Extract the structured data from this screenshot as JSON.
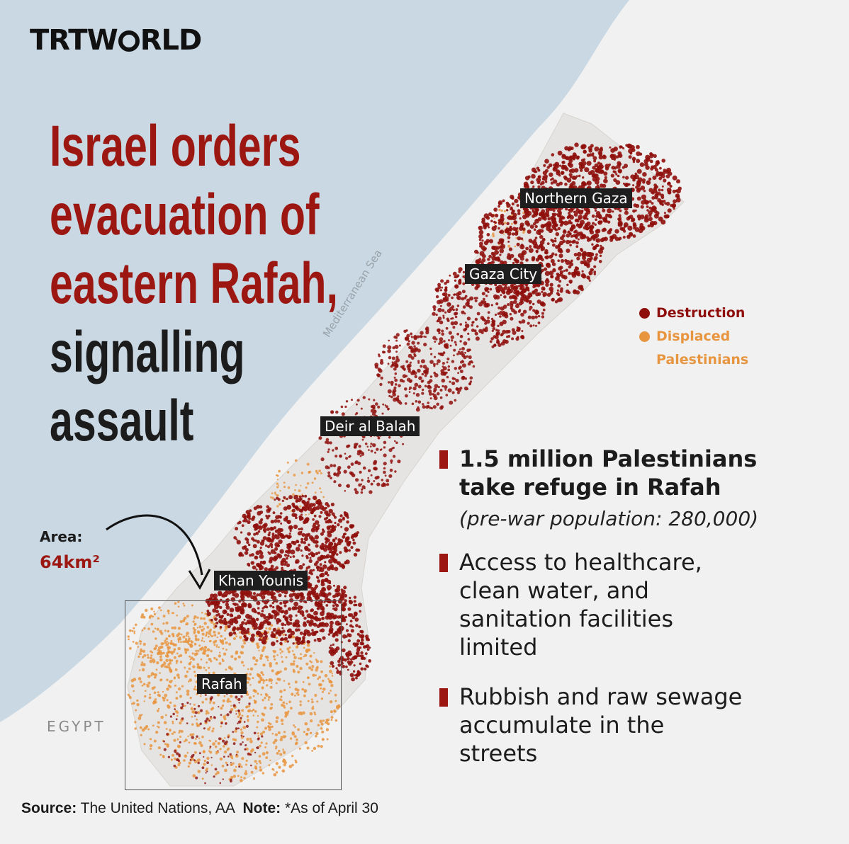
{
  "brand": {
    "logo_text": "TRTWORLD",
    "logo_part1": "TRTW",
    "logo_part2": "RLD"
  },
  "headline": {
    "red_lines": [
      "Israel orders",
      "evacuation of",
      "eastern Rafah,"
    ],
    "dark_lines": [
      "signalling",
      "assault"
    ]
  },
  "map": {
    "sea_label": "Mediterranean Sea",
    "places": {
      "northern_gaza": "Northern Gaza",
      "gaza_city": "Gaza City",
      "deir_al_balah": "Deir al Balah",
      "khan_younis": "Khan Younis",
      "rafah": "Rafah"
    },
    "egypt_label": "EGYPT",
    "area_label": "Area:",
    "area_value": "64km²"
  },
  "legend": {
    "destruction": "Destruction",
    "displaced_line1": "Displaced",
    "displaced_line2": "Palestinians"
  },
  "facts": {
    "fact1_line1": "1.5 million Palestinians",
    "fact1_line2": "take refuge in Rafah",
    "fact1_note": "(pre-war population: 280,000)",
    "fact2_lines": [
      "Access to healthcare,",
      "clean water, and",
      "sanitation facilities",
      "limited"
    ],
    "fact3_lines": [
      "Rubbish and raw sewage",
      "accumulate in the",
      "streets"
    ]
  },
  "footer": {
    "source_label": "Source:",
    "source_text": "The United Nations, AA",
    "note_label": "Note:",
    "note_text": "*As of April 30"
  },
  "colors": {
    "sea": "#c9d8e3",
    "land": "#f1f1f1",
    "destruction": "#8f0f0c",
    "displaced": "#e8953f",
    "headline_red": "#9c1711",
    "text_dark": "#1c1c1c"
  }
}
